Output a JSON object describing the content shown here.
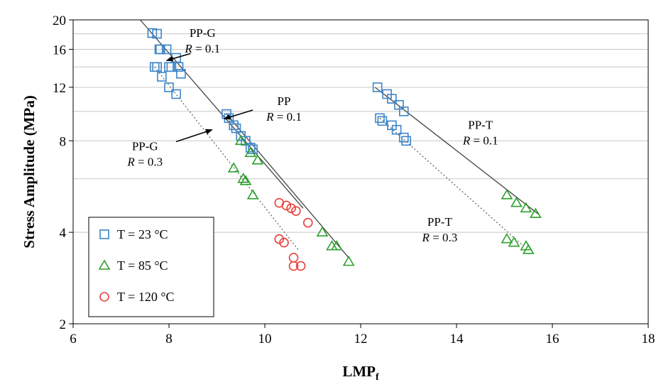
{
  "chart_data": {
    "type": "scatter",
    "xlabel": "LMP",
    "xlabel_sub": "f",
    "ylabel": "Stress  Amplitude (MPa)",
    "xlim": [
      6,
      18
    ],
    "ylim": [
      2,
      20
    ],
    "yscale": "log",
    "xticks": [
      "6",
      "8",
      "10",
      "12",
      "14",
      "16",
      "18"
    ],
    "yticks": [
      "2",
      "4",
      "8",
      "12",
      "16",
      "20"
    ],
    "grid": "horizontal",
    "legend_position": "bottom-left",
    "legend": [
      {
        "label": "T = 23 °C",
        "marker": "square",
        "color": "#3d85c8"
      },
      {
        "label": "T = 85 °C",
        "marker": "triangle",
        "color": "#2ca02c"
      },
      {
        "label": "T = 120 °C",
        "marker": "circle",
        "color": "#e8403a"
      }
    ],
    "series": [
      {
        "label": "T = 23 °C",
        "marker": "square",
        "color": "#3d85c8",
        "points": [
          [
            7.65,
            18.1
          ],
          [
            7.75,
            18.0
          ],
          [
            7.8,
            16.0
          ],
          [
            7.82,
            16.0
          ],
          [
            7.95,
            16.0
          ],
          [
            8.0,
            14.0
          ],
          [
            8.05,
            14.0
          ],
          [
            8.15,
            15.0
          ],
          [
            8.2,
            14.0
          ],
          [
            8.25,
            13.3
          ],
          [
            7.7,
            14.0
          ],
          [
            7.75,
            14.0
          ],
          [
            7.85,
            13.0
          ],
          [
            8.0,
            12.0
          ],
          [
            8.15,
            11.4
          ],
          [
            9.2,
            9.8
          ],
          [
            9.25,
            9.5
          ],
          [
            9.35,
            9.0
          ],
          [
            9.4,
            8.8
          ],
          [
            9.5,
            8.3
          ],
          [
            9.6,
            8.0
          ],
          [
            9.7,
            7.6
          ],
          [
            9.75,
            7.5
          ],
          [
            12.35,
            12.0
          ],
          [
            12.55,
            11.4
          ],
          [
            12.65,
            11.0
          ],
          [
            12.8,
            10.5
          ],
          [
            12.9,
            10.0
          ],
          [
            12.4,
            9.5
          ],
          [
            12.45,
            9.3
          ],
          [
            12.65,
            9.0
          ],
          [
            12.75,
            8.7
          ],
          [
            12.9,
            8.2
          ],
          [
            12.95,
            8.0
          ]
        ]
      },
      {
        "label": "T = 85 °C",
        "marker": "triangle",
        "color": "#2ca02c",
        "points": [
          [
            9.5,
            8.0
          ],
          [
            9.7,
            7.3
          ],
          [
            9.85,
            6.9
          ],
          [
            9.35,
            6.5
          ],
          [
            9.55,
            6.0
          ],
          [
            9.6,
            5.9
          ],
          [
            9.75,
            5.3
          ],
          [
            11.2,
            4.0
          ],
          [
            11.4,
            3.6
          ],
          [
            11.5,
            3.6
          ],
          [
            11.75,
            3.2
          ],
          [
            15.05,
            5.3
          ],
          [
            15.25,
            5.0
          ],
          [
            15.45,
            4.8
          ],
          [
            15.65,
            4.6
          ],
          [
            15.05,
            3.8
          ],
          [
            15.2,
            3.7
          ],
          [
            15.45,
            3.6
          ],
          [
            15.5,
            3.5
          ]
        ]
      },
      {
        "label": "T = 120 °C",
        "marker": "circle",
        "color": "#e8403a",
        "points": [
          [
            10.3,
            5.0
          ],
          [
            10.45,
            4.9
          ],
          [
            10.55,
            4.8
          ],
          [
            10.65,
            4.7
          ],
          [
            10.9,
            4.3
          ],
          [
            10.3,
            3.8
          ],
          [
            10.4,
            3.7
          ],
          [
            10.6,
            3.3
          ],
          [
            10.6,
            3.1
          ],
          [
            10.75,
            3.1
          ]
        ]
      }
    ],
    "fits": [
      {
        "from": [
          7.4,
          20.0
        ],
        "to": [
          10.8,
          4.8
        ],
        "style": "solid"
      },
      {
        "from": [
          9.2,
          9.8
        ],
        "to": [
          11.75,
          3.3
        ],
        "style": "solid"
      },
      {
        "from": [
          7.7,
          14.0
        ],
        "to": [
          10.7,
          3.5
        ],
        "style": "dotted"
      },
      {
        "from": [
          12.3,
          12.0
        ],
        "to": [
          15.7,
          4.6
        ],
        "style": "solid"
      },
      {
        "from": [
          12.4,
          9.5
        ],
        "to": [
          15.4,
          3.6
        ],
        "style": "dotted"
      }
    ],
    "annotations": [
      {
        "name": "PP-G",
        "r": "= 0.1",
        "label_at": [
          8.7,
          17.6
        ],
        "arrow_from": [
          8.45,
          15.5
        ],
        "arrow_to": [
          7.95,
          14.7
        ]
      },
      {
        "name": "PP",
        "r": "= 0.1",
        "label_at": [
          10.4,
          10.5
        ],
        "arrow_from": [
          9.75,
          10.1
        ],
        "arrow_to": [
          9.15,
          9.45
        ]
      },
      {
        "name": "PP-G",
        "r": "= 0.3",
        "label_at": [
          7.5,
          7.45
        ],
        "arrow_from": [
          8.15,
          7.95
        ],
        "arrow_to": [
          8.9,
          8.7
        ]
      },
      {
        "name": "PP-T",
        "r": "= 0.1",
        "label_at": [
          14.5,
          8.75
        ],
        "arrow_from": null,
        "arrow_to": null
      },
      {
        "name": "PP-T",
        "r": "= 0.3",
        "label_at": [
          13.65,
          4.2
        ],
        "arrow_from": null,
        "arrow_to": null
      }
    ]
  }
}
